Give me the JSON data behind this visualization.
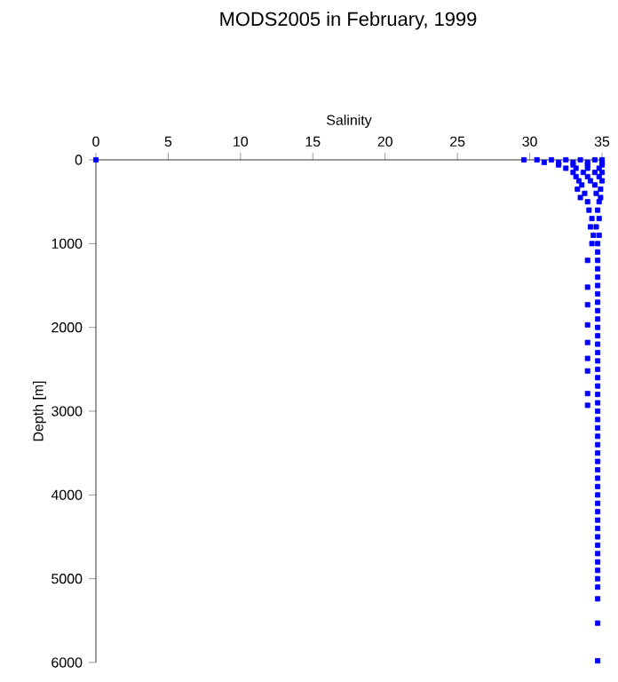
{
  "chart_data": {
    "type": "scatter",
    "title": "MODS2005 in February, 1999",
    "xlabel": "Salinity",
    "ylabel": "Depth [m]",
    "color": "#0000ff",
    "marker": "square",
    "grid": false,
    "xlim": [
      0,
      35
    ],
    "ylim": [
      6000,
      0
    ],
    "xticks": [
      0,
      5,
      10,
      15,
      20,
      25,
      30,
      35
    ],
    "yticks": [
      0,
      1000,
      2000,
      3000,
      4000,
      5000,
      6000
    ],
    "x": [
      0,
      29.6,
      30.5,
      31.5,
      32.5,
      33.5,
      34.5,
      35.0,
      31.0,
      32.0,
      33.0,
      34.0,
      35.0,
      32.0,
      33.0,
      34.0,
      35.0,
      32.5,
      33.2,
      34.0,
      34.8,
      33.0,
      33.7,
      34.5,
      35.0,
      33.2,
      34.0,
      34.8,
      33.4,
      34.2,
      35.0,
      33.6,
      34.5,
      33.3,
      34.9,
      33.8,
      34.6,
      33.5,
      34.9,
      34.0,
      34.8,
      34.1,
      34.7,
      34.3,
      34.8,
      34.2,
      34.6,
      34.4,
      34.8,
      34.3,
      34.7,
      34.0,
      34.0,
      34.0,
      34.0,
      34.0,
      34.0,
      34.0,
      34.0,
      34.0,
      34.7,
      34.7,
      34.7,
      34.7,
      34.7,
      34.7,
      34.7,
      34.7,
      34.7,
      34.7,
      34.7,
      34.7,
      34.7,
      34.7,
      34.7,
      34.7,
      34.7,
      34.7,
      34.7,
      34.7,
      34.7,
      34.7,
      34.7,
      34.7,
      34.7,
      34.7,
      34.7,
      34.7,
      34.7,
      34.7,
      34.7,
      34.7,
      34.7,
      34.7,
      34.7,
      34.7,
      34.7,
      34.7,
      34.7,
      34.7,
      34.7,
      34.7,
      34.7,
      34.7
    ],
    "values": [
      0,
      0,
      0,
      0,
      0,
      0,
      0,
      0,
      30,
      30,
      30,
      30,
      30,
      60,
      60,
      60,
      60,
      100,
      100,
      100,
      100,
      150,
      150,
      150,
      150,
      200,
      200,
      200,
      250,
      250,
      250,
      300,
      300,
      350,
      350,
      400,
      400,
      450,
      450,
      500,
      500,
      600,
      600,
      700,
      700,
      800,
      800,
      900,
      900,
      1000,
      1000,
      1200,
      1520,
      1730,
      1970,
      2180,
      2370,
      2520,
      2790,
      2930,
      1100,
      1200,
      1300,
      1400,
      1500,
      1600,
      1700,
      1800,
      1900,
      2000,
      2100,
      2200,
      2300,
      2400,
      2500,
      2600,
      2700,
      2800,
      2900,
      3000,
      3100,
      3200,
      3300,
      3400,
      3500,
      3600,
      3700,
      3800,
      3900,
      4000,
      4100,
      4200,
      4300,
      4400,
      4500,
      4600,
      4700,
      4800,
      4900,
      5000,
      5100,
      5240,
      5530,
      5980
    ]
  }
}
